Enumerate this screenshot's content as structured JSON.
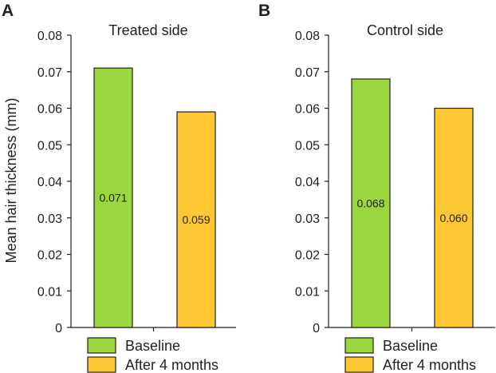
{
  "figure": {
    "ylabel": "Mean hair thickness (mm)"
  },
  "legend": {
    "entries": [
      {
        "label": "Baseline",
        "color": "#9cd63f"
      },
      {
        "label": "After 4 months",
        "color": "#ffc832"
      }
    ]
  },
  "chart_data": [
    {
      "type": "bar",
      "panel": "A",
      "title": "Treated side",
      "ylabel": "Mean hair thickness (mm)",
      "ylim": [
        0,
        0.08
      ],
      "yticks": [
        "0",
        "0.01",
        "0.02",
        "0.03",
        "0.04",
        "0.05",
        "0.06",
        "0.07",
        "0.08"
      ],
      "categories": [
        "Baseline",
        "After 4 months"
      ],
      "values": [
        0.071,
        0.059
      ],
      "value_labels": [
        "0.071",
        "0.059"
      ],
      "colors": [
        "#9cd63f",
        "#ffc832"
      ]
    },
    {
      "type": "bar",
      "panel": "B",
      "title": "Control side",
      "ylabel": "",
      "ylim": [
        0,
        0.08
      ],
      "yticks": [
        "0",
        "0.01",
        "0.02",
        "0.03",
        "0.04",
        "0.05",
        "0.06",
        "0.07",
        "0.08"
      ],
      "categories": [
        "Baseline",
        "After 4 months"
      ],
      "values": [
        0.068,
        0.06
      ],
      "value_labels": [
        "0.068",
        "0.060"
      ],
      "colors": [
        "#9cd63f",
        "#ffc832"
      ]
    }
  ]
}
